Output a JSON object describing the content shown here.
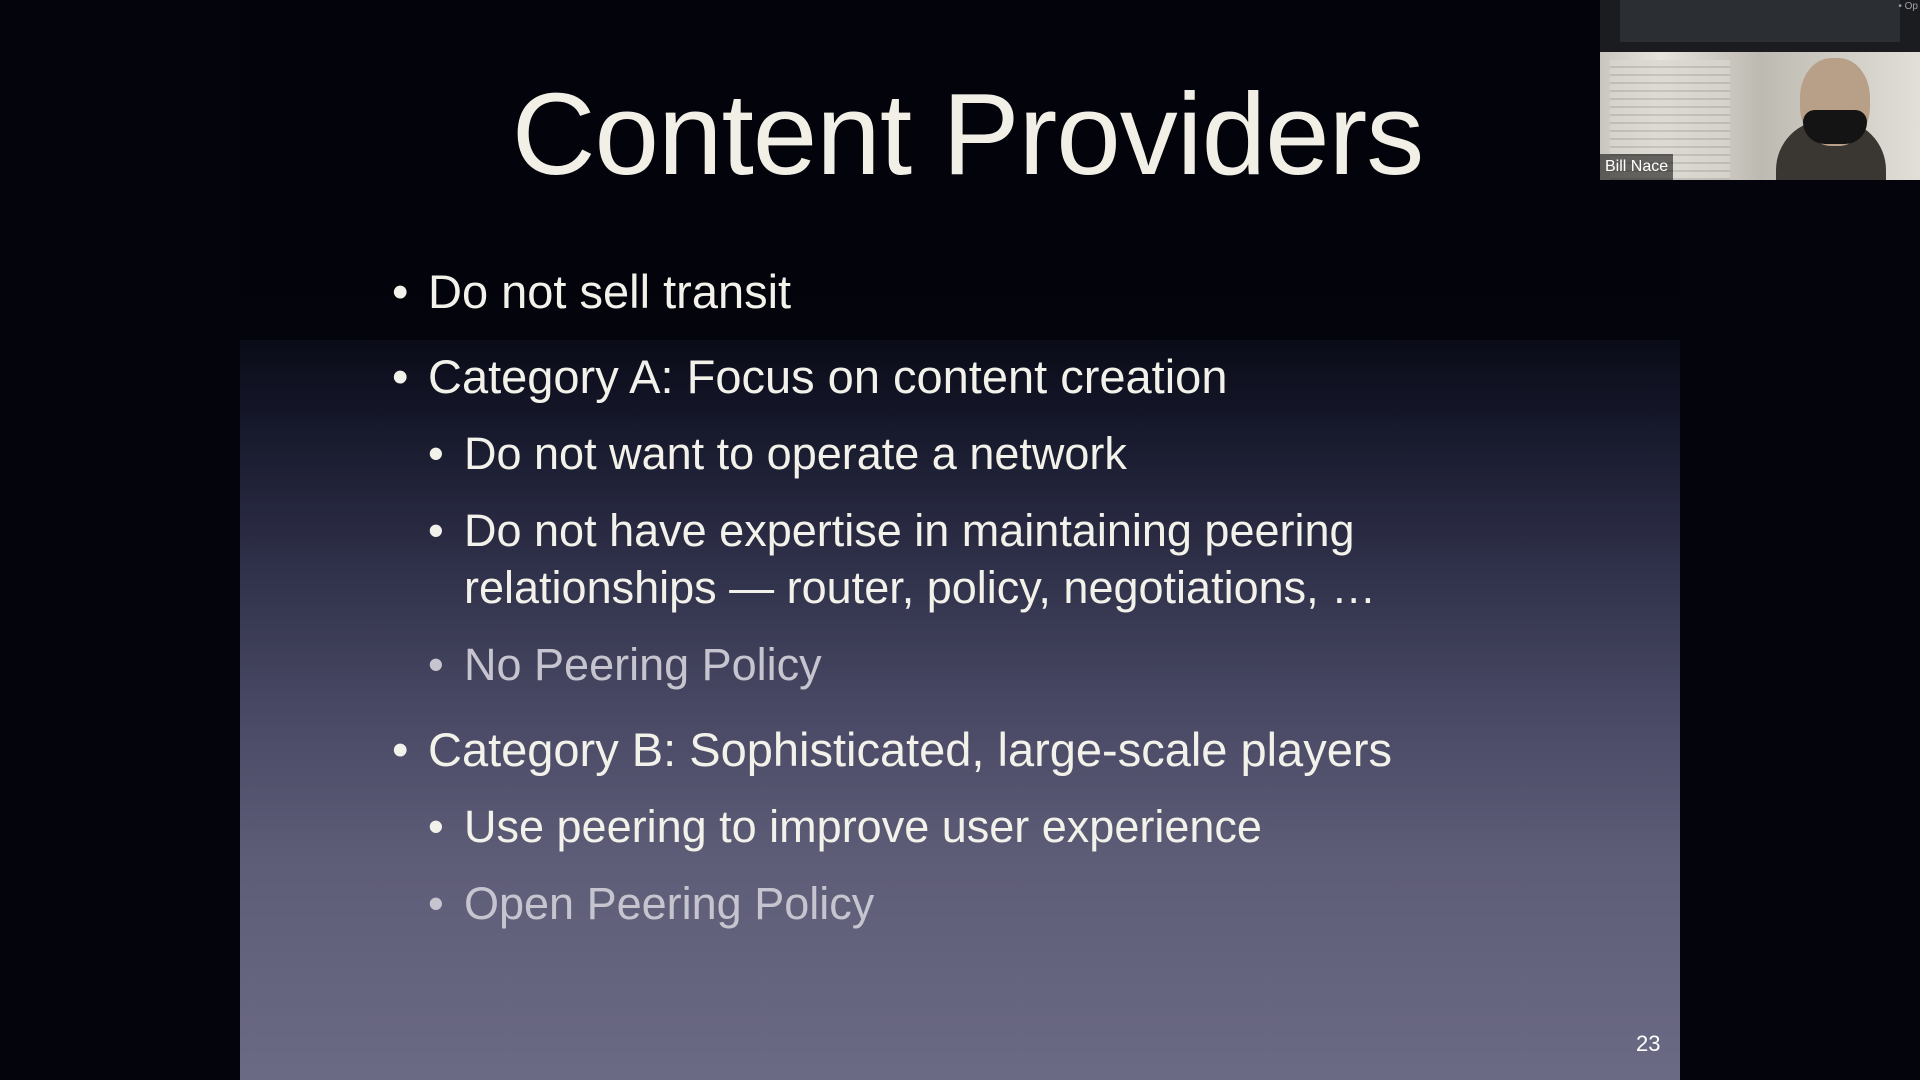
{
  "slide": {
    "title": "Content Providers",
    "number": "23",
    "bullets": [
      {
        "text": "Do not sell transit",
        "level": 1,
        "muted": false
      },
      {
        "text": "Category A: Focus on content creation",
        "level": 1,
        "muted": false
      },
      {
        "text": "Do not want to operate a network",
        "level": 2,
        "muted": false
      },
      {
        "text": "Do not have expertise in maintaining peering",
        "level": 2,
        "muted": false
      },
      {
        "text": "relationships — router, policy, negotiations, …",
        "level": 2,
        "muted": false
      },
      {
        "text": "No Peering Policy",
        "level": 2,
        "muted": true
      },
      {
        "text": "Category B: Sophisticated, large-scale players",
        "level": 1,
        "muted": false
      },
      {
        "text": "Use peering to improve user experience",
        "level": 2,
        "muted": false
      },
      {
        "text": "Open Peering Policy",
        "level": 2,
        "muted": true
      }
    ],
    "bullet_glyph": "•"
  },
  "webcam": {
    "participant_name": "Bill Nace",
    "corner_label": "• Op"
  },
  "colors": {
    "background": "#03040c",
    "text": "#f2f1ea",
    "muted_text": "#c6c5cf"
  }
}
